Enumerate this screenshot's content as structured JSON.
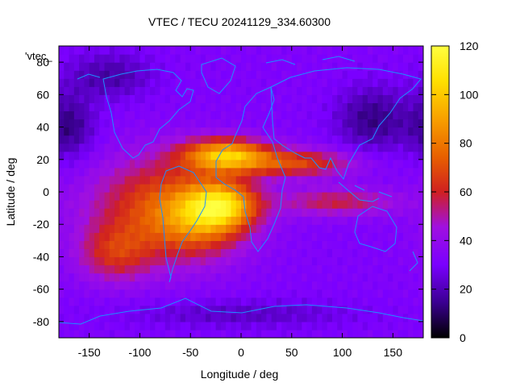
{
  "chart_data": {
    "type": "heatmap",
    "title": "VTEC / TECU 20241129_334.60300",
    "xlabel": "Longitude / deg",
    "ylabel": "Latitude / deg",
    "xlim": [
      -180,
      180
    ],
    "ylim": [
      -90,
      90
    ],
    "x_ticks": [
      -150,
      -100,
      -50,
      0,
      50,
      100,
      150
    ],
    "y_ticks": [
      -80,
      -60,
      -40,
      -20,
      0,
      20,
      40,
      60,
      80
    ],
    "x_tick_labels": [
      "-150",
      "-100",
      "-50",
      "0",
      "50",
      "100",
      "150"
    ],
    "y_tick_labels": [
      "-80",
      "-60",
      "-40",
      "-20",
      "0",
      "20",
      "40",
      "60",
      "80"
    ],
    "colorbar": {
      "range": [
        0,
        120
      ],
      "ticks": [
        0,
        20,
        40,
        60,
        80,
        100,
        120
      ],
      "tick_labels": [
        "0",
        "20",
        "40",
        "60",
        "80",
        "100",
        "120"
      ],
      "colormap": [
        "#000000",
        "#3a0090",
        "#7a00ff",
        "#a010e0",
        "#d02020",
        "#e86000",
        "#f8a000",
        "#ffe000",
        "#ffff40"
      ]
    },
    "key_label": "'vtec_",
    "background_level": 32,
    "features": [
      {
        "name": "equatorial-anomaly-americas",
        "lon": -75,
        "lat": -10,
        "peak": 80
      },
      {
        "name": "anomaly-crest-atlantic-south",
        "lon": -15,
        "lat": -8,
        "peak": 95
      },
      {
        "name": "anomaly-crest-africa-north",
        "lon": -15,
        "lat": 22,
        "peak": 100
      },
      {
        "name": "northern-crest-asia",
        "lon": 70,
        "lat": 18,
        "peak": 70
      },
      {
        "name": "southern-crest-indian-ocean",
        "lon": 100,
        "lat": -8,
        "peak": 60
      },
      {
        "name": "low-tec-siberia",
        "lon": 120,
        "lat": 45,
        "peak": 12
      },
      {
        "name": "low-tec-north-pacific",
        "lon": -170,
        "lat": 40,
        "peak": 12
      }
    ]
  }
}
